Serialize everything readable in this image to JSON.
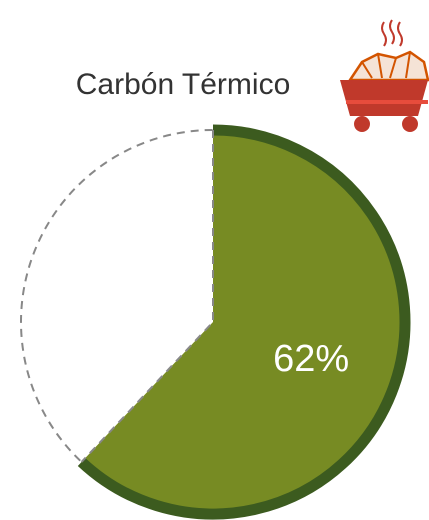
{
  "chart_data": {
    "type": "pie",
    "title": "Carbón Térmico",
    "values": [
      62
    ],
    "value_labels": [
      "62%"
    ],
    "color": "#778b23",
    "edge_color": "#3c5b1f"
  }
}
